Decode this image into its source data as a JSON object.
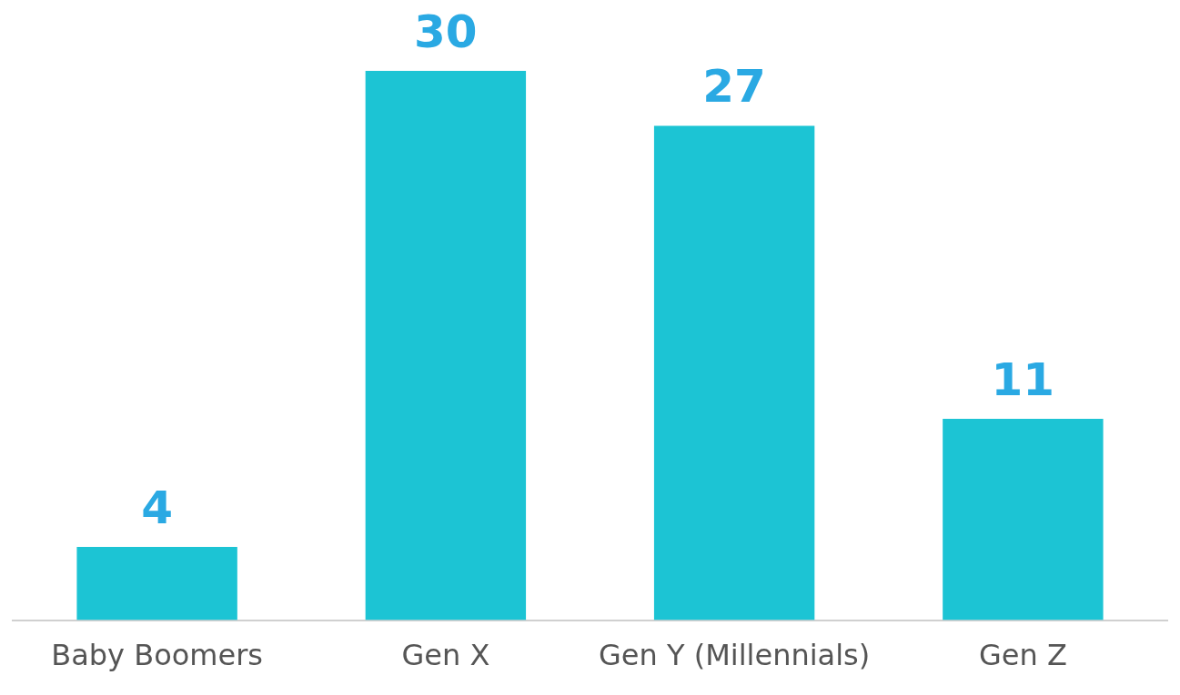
{
  "chart_data": {
    "type": "bar",
    "categories": [
      "Baby Boomers",
      "Gen X",
      "Gen Y (Millennials)",
      "Gen Z"
    ],
    "values": [
      4,
      30,
      27,
      11
    ],
    "color": "#1cc4d4",
    "data_labels": true,
    "grid": false,
    "legend": false
  }
}
